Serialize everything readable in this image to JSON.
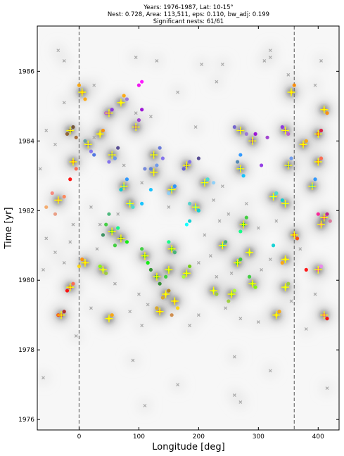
{
  "title_lines": [
    "Years: 1976-1987, Lat: 10-15°",
    "Nest: 0.728, Area: 113,511, eps: 0.110, bw_adj: 0.199",
    "Significant nests: 61/61"
  ],
  "chart_data": {
    "type": "scatter",
    "xlabel": "Longitude [deg]",
    "ylabel": "Time [yr]",
    "xlim": [
      -70,
      435
    ],
    "ylim": [
      1975.7,
      1987.3
    ],
    "xticks": [
      0,
      100,
      200,
      300,
      400
    ],
    "yticks": [
      1976,
      1978,
      1980,
      1982,
      1984,
      1986
    ],
    "reference_lines_x": [
      0,
      360
    ],
    "grid": false,
    "colors": {
      "background": "#f7f7f7",
      "density": "#3f3f3f",
      "noise": "#a8a8a8",
      "center": "#ffff00",
      "reference_line": "#707070"
    },
    "nest_centers": [
      [
        -15,
        1984.3
      ],
      [
        5,
        1985.4
      ],
      [
        -10,
        1983.4
      ],
      [
        -35,
        1982.3
      ],
      [
        15,
        1983.9
      ],
      [
        35,
        1984.2
      ],
      [
        50,
        1984.8
      ],
      [
        70,
        1985.1
      ],
      [
        55,
        1983.6
      ],
      [
        95,
        1984.4
      ],
      [
        125,
        1983.6
      ],
      [
        155,
        1982.6
      ],
      [
        125,
        1983.1
      ],
      [
        75,
        1982.7
      ],
      [
        85,
        1982.2
      ],
      [
        195,
        1982.1
      ],
      [
        180,
        1983.3
      ],
      [
        210,
        1982.8
      ],
      [
        55,
        1981.4
      ],
      [
        70,
        1981.2
      ],
      [
        110,
        1980.7
      ],
      [
        155,
        1980.9
      ],
      [
        150,
        1980.3
      ],
      [
        130,
        1980.1
      ],
      [
        180,
        1980.2
      ],
      [
        40,
        1980.3
      ],
      [
        10,
        1980.5
      ],
      [
        -15,
        1979.8
      ],
      [
        -30,
        1979.0
      ],
      [
        50,
        1978.9
      ],
      [
        145,
        1979.6
      ],
      [
        160,
        1979.4
      ],
      [
        135,
        1979.1
      ],
      [
        225,
        1979.7
      ],
      [
        255,
        1979.6
      ],
      [
        290,
        1979.9
      ],
      [
        265,
        1980.5
      ],
      [
        285,
        1980.8
      ],
      [
        275,
        1981.6
      ],
      [
        240,
        1981.0
      ],
      [
        270,
        1983.2
      ],
      [
        270,
        1984.3
      ],
      [
        290,
        1984.0
      ],
      [
        345,
        1984.3
      ],
      [
        350,
        1983.3
      ],
      [
        355,
        1985.4
      ],
      [
        375,
        1983.9
      ],
      [
        400,
        1984.2
      ],
      [
        410,
        1984.9
      ],
      [
        400,
        1983.4
      ],
      [
        390,
        1982.7
      ],
      [
        325,
        1982.4
      ],
      [
        345,
        1982.2
      ],
      [
        410,
        1981.8
      ],
      [
        405,
        1981.6
      ],
      [
        360,
        1981.3
      ],
      [
        345,
        1980.6
      ],
      [
        400,
        1980.3
      ],
      [
        345,
        1979.8
      ],
      [
        410,
        1979.0
      ],
      [
        330,
        1979.0
      ]
    ],
    "noise_points": [
      [
        -35,
        1986.6
      ],
      [
        -25,
        1986.3
      ],
      [
        95,
        1986.4
      ],
      [
        130,
        1986.3
      ],
      [
        205,
        1986.2
      ],
      [
        240,
        1986.2
      ],
      [
        310,
        1986.3
      ],
      [
        320,
        1986.6
      ],
      [
        320,
        1986.4
      ],
      [
        405,
        1986.3
      ],
      [
        350,
        1985.9
      ],
      [
        230,
        1985.7
      ],
      [
        165,
        1985.4
      ],
      [
        95,
        1984.8
      ],
      [
        -55,
        1984.3
      ],
      [
        120,
        1984.7
      ],
      [
        195,
        1984.4
      ],
      [
        25,
        1984.1
      ],
      [
        -40,
        1983.9
      ],
      [
        75,
        1983.3
      ],
      [
        -65,
        1983.2
      ],
      [
        105,
        1982.8
      ],
      [
        150,
        1982.1
      ],
      [
        65,
        1981.9
      ],
      [
        35,
        1981.6
      ],
      [
        -10,
        1981.6
      ],
      [
        20,
        1982.1
      ],
      [
        225,
        1982.3
      ],
      [
        235,
        1981.7
      ],
      [
        240,
        1982.7
      ],
      [
        250,
        1981.9
      ],
      [
        300,
        1981.5
      ],
      [
        210,
        1981.3
      ],
      [
        220,
        1980.7
      ],
      [
        200,
        1980.5
      ],
      [
        230,
        1980.1
      ],
      [
        255,
        1980.2
      ],
      [
        305,
        1980.3
      ],
      [
        320,
        1980.6
      ],
      [
        370,
        1980.9
      ],
      [
        330,
        1981.7
      ],
      [
        -55,
        1981.2
      ],
      [
        -60,
        1980.3
      ],
      [
        -25,
        1980.5
      ],
      [
        -40,
        1980.8
      ],
      [
        -15,
        1981.1
      ],
      [
        30,
        1980.9
      ],
      [
        100,
        1979.6
      ],
      [
        115,
        1979.3
      ],
      [
        85,
        1979.1
      ],
      [
        200,
        1979.0
      ],
      [
        245,
        1979.2
      ],
      [
        270,
        1978.9
      ],
      [
        300,
        1978.8
      ],
      [
        355,
        1979.4
      ],
      [
        395,
        1979.6
      ],
      [
        20,
        1979.2
      ],
      [
        105,
        1978.7
      ],
      [
        185,
        1978.7
      ],
      [
        -5,
        1978.4
      ],
      [
        380,
        1978.6
      ],
      [
        260,
        1976.7
      ],
      [
        270,
        1976.5
      ],
      [
        110,
        1976.4
      ],
      [
        -60,
        1977.2
      ],
      [
        90,
        1977.7
      ],
      [
        165,
        1977.0
      ],
      [
        260,
        1977.8
      ],
      [
        320,
        1977.4
      ],
      [
        415,
        1976.9
      ],
      [
        60,
        1979.9
      ],
      [
        280,
        1982.2
      ],
      [
        395,
        1985.6
      ],
      [
        25,
        1985.6
      ],
      [
        -25,
        1985.1
      ]
    ],
    "colored_points": [
      [
        -15,
        1984.3,
        "#7a5230"
      ],
      [
        -20,
        1984.2,
        "#8b5a2b"
      ],
      [
        -10,
        1984.4,
        "#6b4a2b"
      ],
      [
        -5,
        1984.1,
        "#a0622d"
      ],
      [
        5,
        1985.4,
        "#ff8c00"
      ],
      [
        10,
        1985.2,
        "#ffa500"
      ],
      [
        0,
        1985.6,
        "#ffa500"
      ],
      [
        -10,
        1983.4,
        "#ff4500"
      ],
      [
        -5,
        1983.2,
        "#ff6347"
      ],
      [
        -15,
        1982.9,
        "#ff0000"
      ],
      [
        -35,
        1982.3,
        "#f08060"
      ],
      [
        -45,
        1982.5,
        "#fa8072"
      ],
      [
        -40,
        1981.9,
        "#e9967a"
      ],
      [
        -55,
        1982.1,
        "#f4a460"
      ],
      [
        -25,
        1982.4,
        "#ff7f50"
      ],
      [
        15,
        1983.9,
        "#6a5acd"
      ],
      [
        20,
        1983.7,
        "#7b68ee"
      ],
      [
        25,
        1983.6,
        "#4169e1"
      ],
      [
        10,
        1984.0,
        "#5f9ea0"
      ],
      [
        35,
        1984.2,
        "#ffd700"
      ],
      [
        40,
        1984.3,
        "#ff8c00"
      ],
      [
        50,
        1984.8,
        "#9400d3"
      ],
      [
        55,
        1984.9,
        "#8a2be2"
      ],
      [
        45,
        1984.8,
        "#ba55d3"
      ],
      [
        70,
        1985.1,
        "#ffd700"
      ],
      [
        75,
        1985.3,
        "#ffa500"
      ],
      [
        80,
        1985.2,
        "#9370db"
      ],
      [
        100,
        1985.6,
        "#ee00ee"
      ],
      [
        105,
        1985.7,
        "#ff00ff"
      ],
      [
        55,
        1983.6,
        "#4169e1"
      ],
      [
        60,
        1983.5,
        "#6495ed"
      ],
      [
        50,
        1983.4,
        "#7b68ee"
      ],
      [
        65,
        1983.8,
        "#483d8b"
      ],
      [
        95,
        1984.4,
        "#8a2be2"
      ],
      [
        100,
        1984.6,
        "#9932cc"
      ],
      [
        105,
        1984.9,
        "#9400d3"
      ],
      [
        125,
        1983.6,
        "#4682b4"
      ],
      [
        130,
        1983.3,
        "#6495ed"
      ],
      [
        120,
        1983.2,
        "#5a7fd6"
      ],
      [
        140,
        1983.5,
        "#7b68ee"
      ],
      [
        110,
        1983.2,
        "#6a7fd9"
      ],
      [
        135,
        1983.8,
        "#5b6fd8"
      ],
      [
        155,
        1982.6,
        "#00bfff"
      ],
      [
        160,
        1982.7,
        "#1e90ff"
      ],
      [
        150,
        1982.5,
        "#87cefa"
      ],
      [
        75,
        1982.7,
        "#00bfff"
      ],
      [
        80,
        1982.9,
        "#1e90ff"
      ],
      [
        70,
        1982.6,
        "#00ced1"
      ],
      [
        85,
        1982.2,
        "#00ffff"
      ],
      [
        90,
        1982.1,
        "#40e0d0"
      ],
      [
        105,
        1982.2,
        "#00bfff"
      ],
      [
        195,
        1982.1,
        "#00ffff"
      ],
      [
        200,
        1982.0,
        "#00ced1"
      ],
      [
        185,
        1982.2,
        "#48d1cc"
      ],
      [
        180,
        1983.3,
        "#6b5b95"
      ],
      [
        185,
        1983.4,
        "#7b68ee"
      ],
      [
        175,
        1983.2,
        "#5e5ad6"
      ],
      [
        210,
        1982.8,
        "#00bfff"
      ],
      [
        215,
        1982.9,
        "#40e0d0"
      ],
      [
        180,
        1981.6,
        "#00ffff"
      ],
      [
        185,
        1981.7,
        "#00ced1"
      ],
      [
        55,
        1981.4,
        "#00cc44"
      ],
      [
        45,
        1981.6,
        "#32cd32"
      ],
      [
        50,
        1981.9,
        "#3cb371"
      ],
      [
        40,
        1981.3,
        "#2e8b57"
      ],
      [
        65,
        1981.5,
        "#00ff7f"
      ],
      [
        70,
        1981.2,
        "#228b22"
      ],
      [
        60,
        1981.0,
        "#32cd32"
      ],
      [
        80,
        1981.1,
        "#00ee00"
      ],
      [
        110,
        1980.7,
        "#00dd00"
      ],
      [
        115,
        1980.5,
        "#00ee00"
      ],
      [
        105,
        1980.9,
        "#32cd32"
      ],
      [
        120,
        1980.3,
        "#228b22"
      ],
      [
        155,
        1980.9,
        "#00ee00"
      ],
      [
        160,
        1980.8,
        "#3cb371"
      ],
      [
        150,
        1981.1,
        "#00ff7f"
      ],
      [
        150,
        1980.3,
        "#7cfc00"
      ],
      [
        145,
        1980.1,
        "#32cd32"
      ],
      [
        130,
        1980.1,
        "#00cc00"
      ],
      [
        135,
        1979.9,
        "#228b22"
      ],
      [
        180,
        1980.2,
        "#7cfc00"
      ],
      [
        175,
        1980.1,
        "#adff2f"
      ],
      [
        185,
        1980.4,
        "#66cd00"
      ],
      [
        40,
        1980.3,
        "#adff2f"
      ],
      [
        45,
        1980.2,
        "#9acd32"
      ],
      [
        35,
        1980.4,
        "#7fff00"
      ],
      [
        10,
        1980.5,
        "#ffa500"
      ],
      [
        5,
        1980.6,
        "#ff8c00"
      ],
      [
        0,
        1980.4,
        "#ffd700"
      ],
      [
        -15,
        1979.8,
        "#ff4500"
      ],
      [
        -10,
        1979.9,
        "#ff6347"
      ],
      [
        -20,
        1979.7,
        "#ff0000"
      ],
      [
        -30,
        1979.0,
        "#dc143c"
      ],
      [
        -25,
        1979.1,
        "#b22222"
      ],
      [
        -35,
        1979.0,
        "#ff4500"
      ],
      [
        50,
        1978.9,
        "#ffd700"
      ],
      [
        55,
        1979.0,
        "#ffa500"
      ],
      [
        145,
        1979.6,
        "#ffd700"
      ],
      [
        140,
        1979.5,
        "#daa520"
      ],
      [
        150,
        1979.7,
        "#b8860b"
      ],
      [
        160,
        1979.4,
        "#ffa500"
      ],
      [
        165,
        1979.2,
        "#ffd700"
      ],
      [
        155,
        1979.0,
        "#cd853f"
      ],
      [
        135,
        1979.1,
        "#ff8c00"
      ],
      [
        130,
        1979.2,
        "#daa520"
      ],
      [
        225,
        1979.7,
        "#adff2f"
      ],
      [
        230,
        1979.6,
        "#9acd32"
      ],
      [
        255,
        1979.6,
        "#7cfc00"
      ],
      [
        260,
        1979.7,
        "#adff2f"
      ],
      [
        250,
        1979.4,
        "#9acd32"
      ],
      [
        290,
        1979.9,
        "#7fff00"
      ],
      [
        285,
        1980.1,
        "#32cd32"
      ],
      [
        295,
        1979.8,
        "#7cfc00"
      ],
      [
        265,
        1980.5,
        "#00ee00"
      ],
      [
        270,
        1980.6,
        "#32cd32"
      ],
      [
        285,
        1980.8,
        "#adff2f"
      ],
      [
        275,
        1981.6,
        "#00ee00"
      ],
      [
        280,
        1981.8,
        "#32cd32"
      ],
      [
        270,
        1981.4,
        "#00ff7f"
      ],
      [
        240,
        1981.0,
        "#00ff7f"
      ],
      [
        245,
        1981.1,
        "#3cb371"
      ],
      [
        270,
        1983.2,
        "#1e90ff"
      ],
      [
        265,
        1983.4,
        "#4682b4"
      ],
      [
        275,
        1983.0,
        "#00bfff"
      ],
      [
        270,
        1983.6,
        "#1e90ff"
      ],
      [
        270,
        1984.3,
        "#7b68ee"
      ],
      [
        260,
        1984.4,
        "#6a5acd"
      ],
      [
        280,
        1984.2,
        "#9370db"
      ],
      [
        290,
        1984.0,
        "#8a2be2"
      ],
      [
        295,
        1984.2,
        "#9400d3"
      ],
      [
        345,
        1984.3,
        "#9932cc"
      ],
      [
        340,
        1984.4,
        "#8a2be2"
      ],
      [
        350,
        1984.2,
        "#ba55d3"
      ],
      [
        350,
        1983.3,
        "#4682b4"
      ],
      [
        355,
        1983.5,
        "#6495ed"
      ],
      [
        355,
        1985.4,
        "#ffa500"
      ],
      [
        360,
        1985.6,
        "#ff8c00"
      ],
      [
        375,
        1983.9,
        "#ff8c00"
      ],
      [
        380,
        1984.0,
        "#ffa500"
      ],
      [
        400,
        1984.2,
        "#ff0000"
      ],
      [
        405,
        1984.3,
        "#dc143c"
      ],
      [
        410,
        1984.9,
        "#ffa500"
      ],
      [
        415,
        1984.8,
        "#ff8c00"
      ],
      [
        400,
        1983.4,
        "#ff4500"
      ],
      [
        405,
        1983.5,
        "#ff6347"
      ],
      [
        390,
        1982.7,
        "#00bfff"
      ],
      [
        395,
        1982.9,
        "#1e90ff"
      ],
      [
        325,
        1982.4,
        "#00ffff"
      ],
      [
        330,
        1982.5,
        "#40e0d0"
      ],
      [
        345,
        1982.2,
        "#48d1cc"
      ],
      [
        340,
        1982.3,
        "#00ced1"
      ],
      [
        410,
        1981.8,
        "#ff1493"
      ],
      [
        415,
        1981.9,
        "#c71585"
      ],
      [
        420,
        1981.7,
        "#db7093"
      ],
      [
        405,
        1981.6,
        "#ff69b4"
      ],
      [
        400,
        1981.9,
        "#ff1493"
      ],
      [
        360,
        1981.3,
        "#ff0000"
      ],
      [
        365,
        1981.2,
        "#ff4500"
      ],
      [
        345,
        1980.6,
        "#ffd700"
      ],
      [
        340,
        1980.5,
        "#ffa500"
      ],
      [
        400,
        1980.3,
        "#ff00ff"
      ],
      [
        405,
        1980.4,
        "#ee82ee"
      ],
      [
        345,
        1979.8,
        "#adff2f"
      ],
      [
        350,
        1979.9,
        "#9acd32"
      ],
      [
        410,
        1979.0,
        "#ff1493"
      ],
      [
        415,
        1978.9,
        "#ff0000"
      ],
      [
        330,
        1979.0,
        "#ffd700"
      ],
      [
        335,
        1979.1,
        "#ffa500"
      ],
      [
        120,
        1982.6,
        "#00bfff"
      ],
      [
        200,
        1983.5,
        "#483d8b"
      ],
      [
        305,
        1983.3,
        "#8a2be2"
      ],
      [
        315,
        1984.1,
        "#9932cc"
      ],
      [
        325,
        1981.0,
        "#00ced1"
      ],
      [
        380,
        1980.3,
        "#ff0000"
      ],
      [
        440,
        1984.9,
        "#ff0000"
      ],
      [
        225,
        1982.8,
        "#87cefa"
      ]
    ]
  }
}
